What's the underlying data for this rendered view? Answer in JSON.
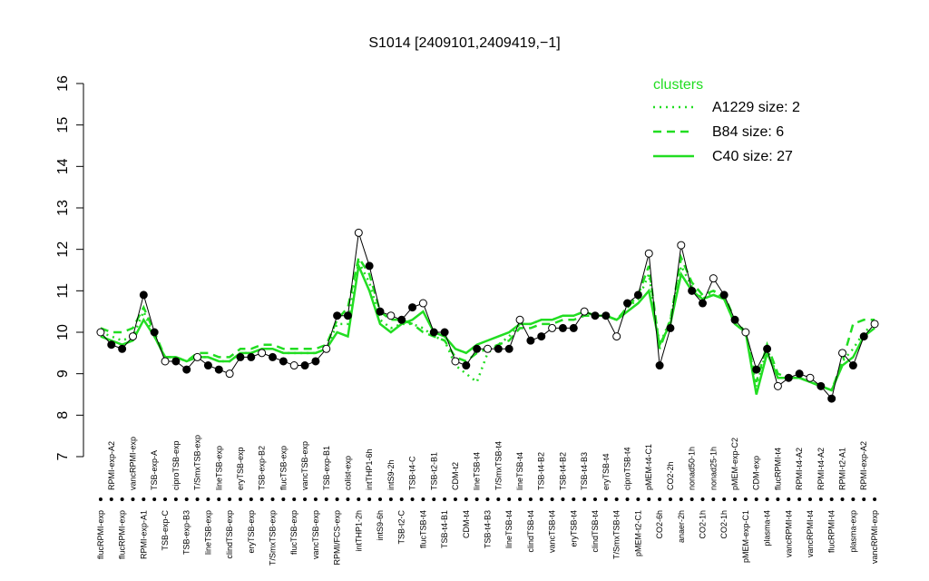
{
  "chart_data": {
    "type": "line",
    "title": "S1014 [2409101,2409419,−1]",
    "legend_title": "clusters",
    "legend_position": "top-right",
    "categories": [
      "flucRPMI-exp",
      "RPMI-exp-A2",
      "flucRPMI-exp",
      "vancRPMI-exp",
      "RPMI-exp-A1",
      "TSB-exp-A",
      "TSB-exp-C",
      "ciproTSB-exp",
      "TSB-exp-B3",
      "T/SmxTSB-exp",
      "lineTSB-exp",
      "lineTSB-exp",
      "clindTSB-exp",
      "eryTSB-exp",
      "eryTSB-exp",
      "TSB-exp-B2",
      "T/SmxTSB-exp",
      "flucTSB-exp",
      "flucTSB-exp",
      "vancTSB-exp",
      "vancTSB-exp",
      "TSB-exp-B1",
      "RPMI/FCS-exp",
      "colist-exp",
      "intTHP1-2h",
      "intTHP1-6h",
      "intS9-6h",
      "intS9-2h",
      "TSB-t2-C",
      "TSB-t4-C",
      "flucTSB-t4",
      "TSB-t2-B1",
      "TSB-t4-B1",
      "CDM-t2",
      "CDM-t4",
      "lineTSB-t4",
      "TSB-t4-B3",
      "T/SmxTSB-t4",
      "lineTSB-t4",
      "lineTSB-t4",
      "clindTSB-t4",
      "TSB-t4-B2",
      "vancTSB-t4",
      "TSB-t4-B2",
      "eryTSB-t4",
      "TSB-t4-B3",
      "clindTSB-t4",
      "eryTSB-t4",
      "T/SmxTSB-t4",
      "ciproTSB-t4",
      "pMEM-t2-C1",
      "pMEM-t4-C1",
      "CO2-6h",
      "CO2-2h",
      "anaer-2h",
      "nonad50-1h",
      "CO2-1h",
      "nonad25-1h",
      "CO2-1h",
      "pMEM-exp-C2",
      "pMEM-exp-C1",
      "CDM-exp",
      "plasma-t4",
      "flucRPMI-t4",
      "vancRPMI-t4",
      "RPMI-t4-A2",
      "vancRPMI-t4",
      "RPMI-t4-A2",
      "flucRPMI-t4",
      "RPMI-t2-A1",
      "plasma-exp",
      "RPMI-exp-A2",
      "vancRPMI-exp"
    ],
    "values": [
      10.0,
      9.7,
      9.6,
      9.9,
      10.9,
      10.0,
      9.3,
      9.3,
      9.1,
      9.4,
      9.2,
      9.1,
      9.0,
      9.4,
      9.4,
      9.5,
      9.4,
      9.3,
      9.2,
      9.2,
      9.3,
      9.6,
      10.4,
      10.4,
      12.4,
      11.6,
      10.5,
      10.4,
      10.3,
      10.6,
      10.7,
      10.0,
      10.0,
      9.3,
      9.2,
      9.6,
      9.6,
      9.6,
      9.6,
      10.3,
      9.8,
      9.9,
      10.1,
      10.1,
      10.1,
      10.5,
      10.4,
      10.4,
      9.9,
      10.7,
      10.9,
      11.9,
      9.2,
      10.1,
      12.1,
      11.0,
      10.7,
      11.3,
      10.9,
      10.3,
      10.0,
      9.1,
      9.6,
      8.7,
      8.9,
      9.0,
      8.9,
      8.7,
      8.4,
      9.5,
      9.2,
      9.9,
      10.2
    ],
    "color": "#000000",
    "series": [
      {
        "name": "A1229 size: 2",
        "color": "#22dd22",
        "dash": "dotted",
        "values": [
          10.0,
          9.9,
          9.8,
          9.9,
          10.5,
          9.9,
          9.4,
          9.4,
          9.3,
          9.4,
          9.4,
          9.3,
          9.3,
          9.5,
          9.5,
          9.6,
          9.6,
          9.5,
          9.5,
          9.5,
          9.5,
          9.6,
          10.2,
          10.2,
          11.7,
          11.2,
          10.3,
          10.1,
          10.2,
          10.2,
          10.1,
          9.9,
          9.8,
          9.2,
          9.0,
          8.8,
          9.5,
          9.7,
          9.9,
          10.2,
          10.2,
          10.3,
          10.3,
          10.4,
          10.4,
          10.5,
          10.4,
          10.4,
          10.3,
          10.6,
          10.8,
          11.4,
          9.7,
          10.3,
          11.6,
          11.1,
          10.8,
          11.0,
          10.8,
          10.2,
          10.0,
          8.7,
          9.6,
          8.9,
          8.9,
          8.9,
          8.8,
          8.7,
          8.6,
          9.3,
          9.6,
          10.0,
          10.2
        ]
      },
      {
        "name": "B84 size: 6",
        "color": "#22dd22",
        "dash": "dashed",
        "values": [
          10.1,
          10.0,
          10.0,
          10.1,
          10.6,
          10.0,
          9.4,
          9.4,
          9.3,
          9.5,
          9.5,
          9.4,
          9.4,
          9.6,
          9.6,
          9.7,
          9.7,
          9.6,
          9.6,
          9.6,
          9.6,
          9.7,
          10.3,
          10.6,
          11.8,
          11.4,
          10.5,
          10.3,
          10.3,
          10.2,
          10.0,
          9.9,
          9.8,
          9.4,
          9.3,
          9.5,
          9.6,
          9.7,
          9.8,
          10.1,
          10.1,
          10.2,
          10.2,
          10.3,
          10.3,
          10.4,
          10.4,
          10.4,
          10.3,
          10.6,
          10.9,
          11.6,
          9.6,
          10.3,
          11.8,
          11.2,
          10.9,
          11.0,
          10.9,
          10.3,
          10.0,
          8.8,
          9.7,
          9.0,
          8.9,
          8.9,
          8.8,
          8.7,
          8.6,
          9.3,
          10.2,
          10.3,
          10.3
        ]
      },
      {
        "name": "C40 size: 27",
        "color": "#22dd22",
        "dash": "solid",
        "values": [
          9.9,
          9.8,
          9.7,
          9.8,
          10.3,
          9.9,
          9.4,
          9.4,
          9.3,
          9.4,
          9.4,
          9.3,
          9.3,
          9.5,
          9.5,
          9.6,
          9.6,
          9.5,
          9.5,
          9.5,
          9.5,
          9.6,
          10.0,
          9.9,
          11.6,
          11.0,
          10.2,
          10.0,
          10.2,
          10.3,
          10.5,
          10.0,
          9.9,
          9.6,
          9.5,
          9.7,
          9.8,
          9.9,
          10.0,
          10.2,
          10.2,
          10.3,
          10.3,
          10.4,
          10.4,
          10.5,
          10.4,
          10.4,
          10.3,
          10.5,
          10.7,
          11.0,
          9.7,
          10.2,
          11.4,
          11.0,
          10.8,
          10.9,
          10.8,
          10.2,
          10.0,
          8.5,
          9.5,
          8.9,
          8.9,
          8.9,
          8.8,
          8.7,
          8.6,
          9.2,
          9.4,
          9.9,
          10.1
        ]
      }
    ],
    "ylim": [
      7,
      16
    ],
    "yticks": [
      7,
      8,
      9,
      10,
      11,
      12,
      13,
      14,
      15,
      16
    ],
    "grid": false
  }
}
